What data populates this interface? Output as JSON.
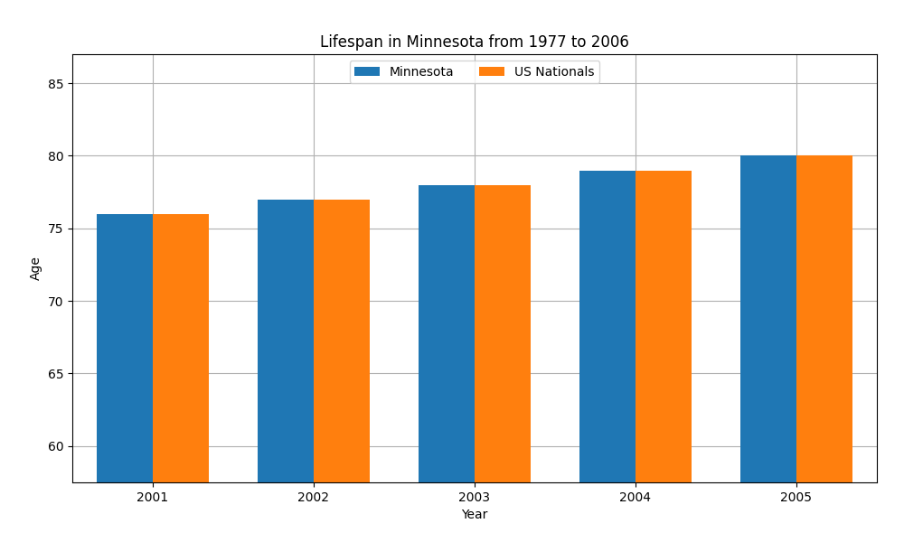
{
  "chart_data": {
    "type": "bar",
    "title": "Lifespan in Minnesota from 1977 to 2006",
    "x_label": "Year",
    "y_label": "Age",
    "categories": [
      "2001",
      "2002",
      "2003",
      "2004",
      "2005"
    ],
    "series": [
      {
        "name": "Minnesota",
        "values": [
          76,
          77,
          78,
          79,
          80
        ]
      },
      {
        "name": "US Nationals",
        "values": [
          76,
          77,
          78,
          79,
          80
        ]
      }
    ],
    "ylim": [
      57.5,
      87
    ],
    "yticks": [
      60,
      65,
      70,
      75,
      80,
      85
    ],
    "grid": true,
    "legend": "upper center"
  }
}
